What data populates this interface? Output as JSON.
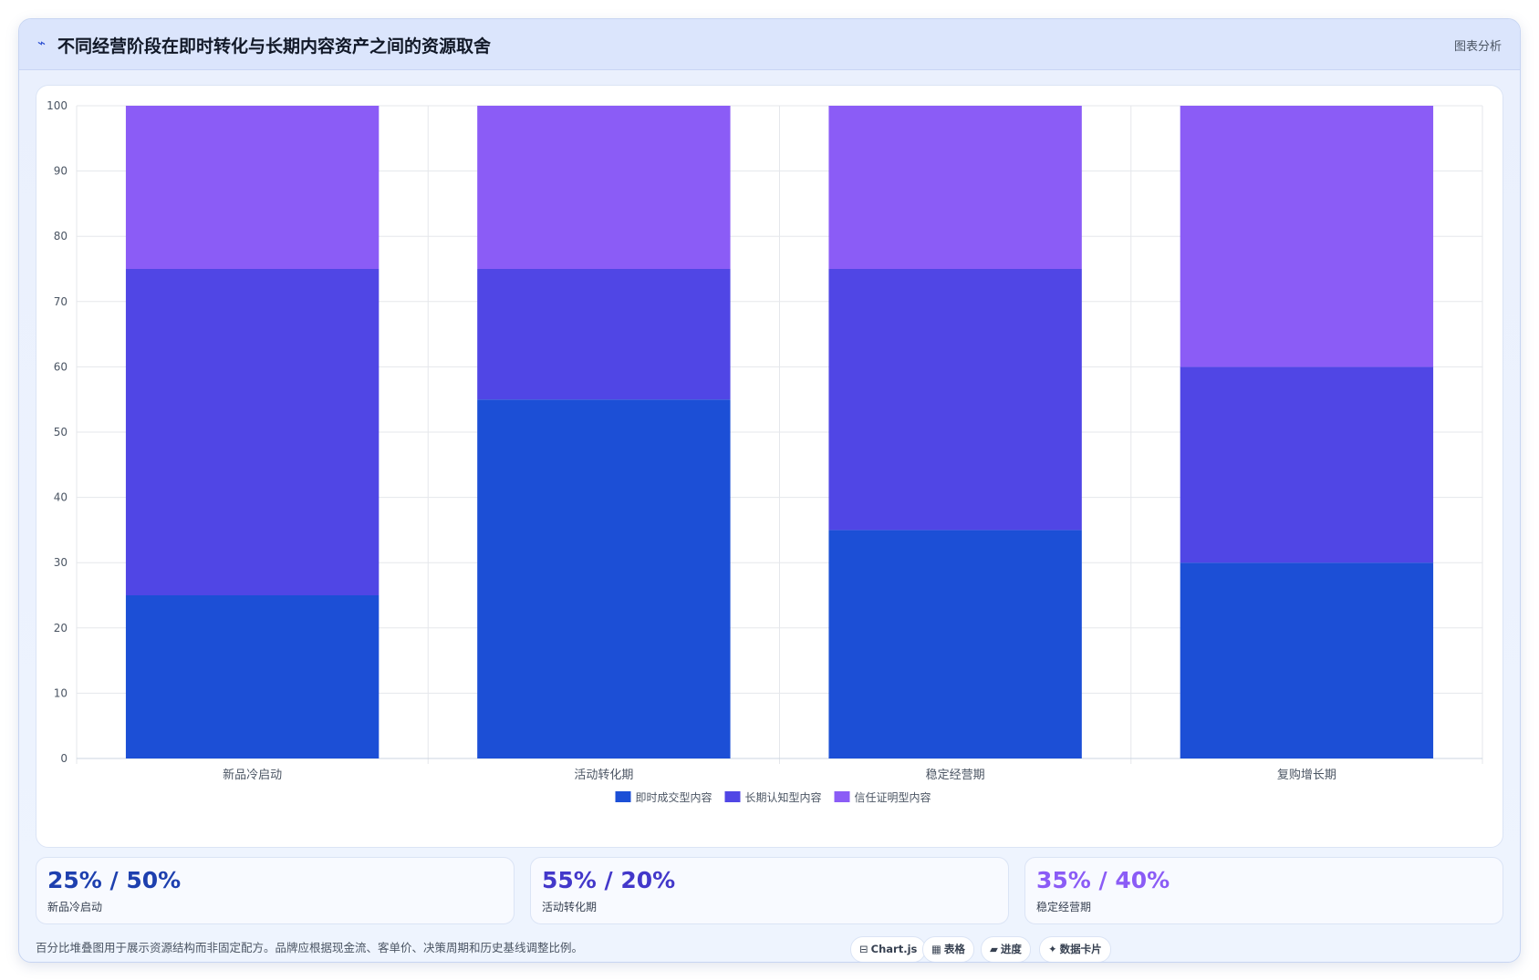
{
  "header": {
    "icon": "trend-line-icon",
    "title": "不同经营阶段在即时转化与长期内容资产之间的资源取舍",
    "tag": "图表分析"
  },
  "colors": {
    "series1": "#1c4fd6",
    "series2": "#5046e5",
    "series3": "#8b5cf6",
    "grid": "#e5e7eb",
    "axis_text": "#4b5563"
  },
  "chart_data": {
    "type": "bar",
    "stacked": true,
    "categories": [
      "新品冷启动",
      "活动转化期",
      "稳定经营期",
      "复购增长期"
    ],
    "series": [
      {
        "name": "即时成交型内容",
        "values": [
          25,
          55,
          35,
          30
        ]
      },
      {
        "name": "长期认知型内容",
        "values": [
          50,
          20,
          40,
          30
        ]
      },
      {
        "name": "信任证明型内容",
        "values": [
          25,
          25,
          25,
          40
        ]
      }
    ],
    "ylim": [
      0,
      100
    ],
    "yticks": [
      0,
      10,
      20,
      30,
      40,
      50,
      60,
      70,
      80,
      90,
      100
    ],
    "grid": true,
    "legend_position": "bottom"
  },
  "stats": [
    {
      "value": "25% / 50%",
      "label": "新品冷启动",
      "color": "#1e40af"
    },
    {
      "value": "55% / 20%",
      "label": "活动转化期",
      "color": "#4338ca"
    },
    {
      "value": "35% / 40%",
      "label": "稳定经营期",
      "color": "#8b5cf6"
    }
  ],
  "footnote": "百分比堆叠图用于展示资源结构而非固定配方。品牌应根据现金流、客单价、决策周期和历史基线调整比例。",
  "chips": [
    {
      "icon": "chart-icon",
      "glyph": "⊟",
      "label": "Chart.js"
    },
    {
      "icon": "table-icon",
      "glyph": "▦",
      "label": "表格"
    },
    {
      "icon": "progress-icon",
      "glyph": "▰",
      "label": "进度"
    },
    {
      "icon": "sparkle-icon",
      "glyph": "✦",
      "label": "数据卡片"
    }
  ]
}
